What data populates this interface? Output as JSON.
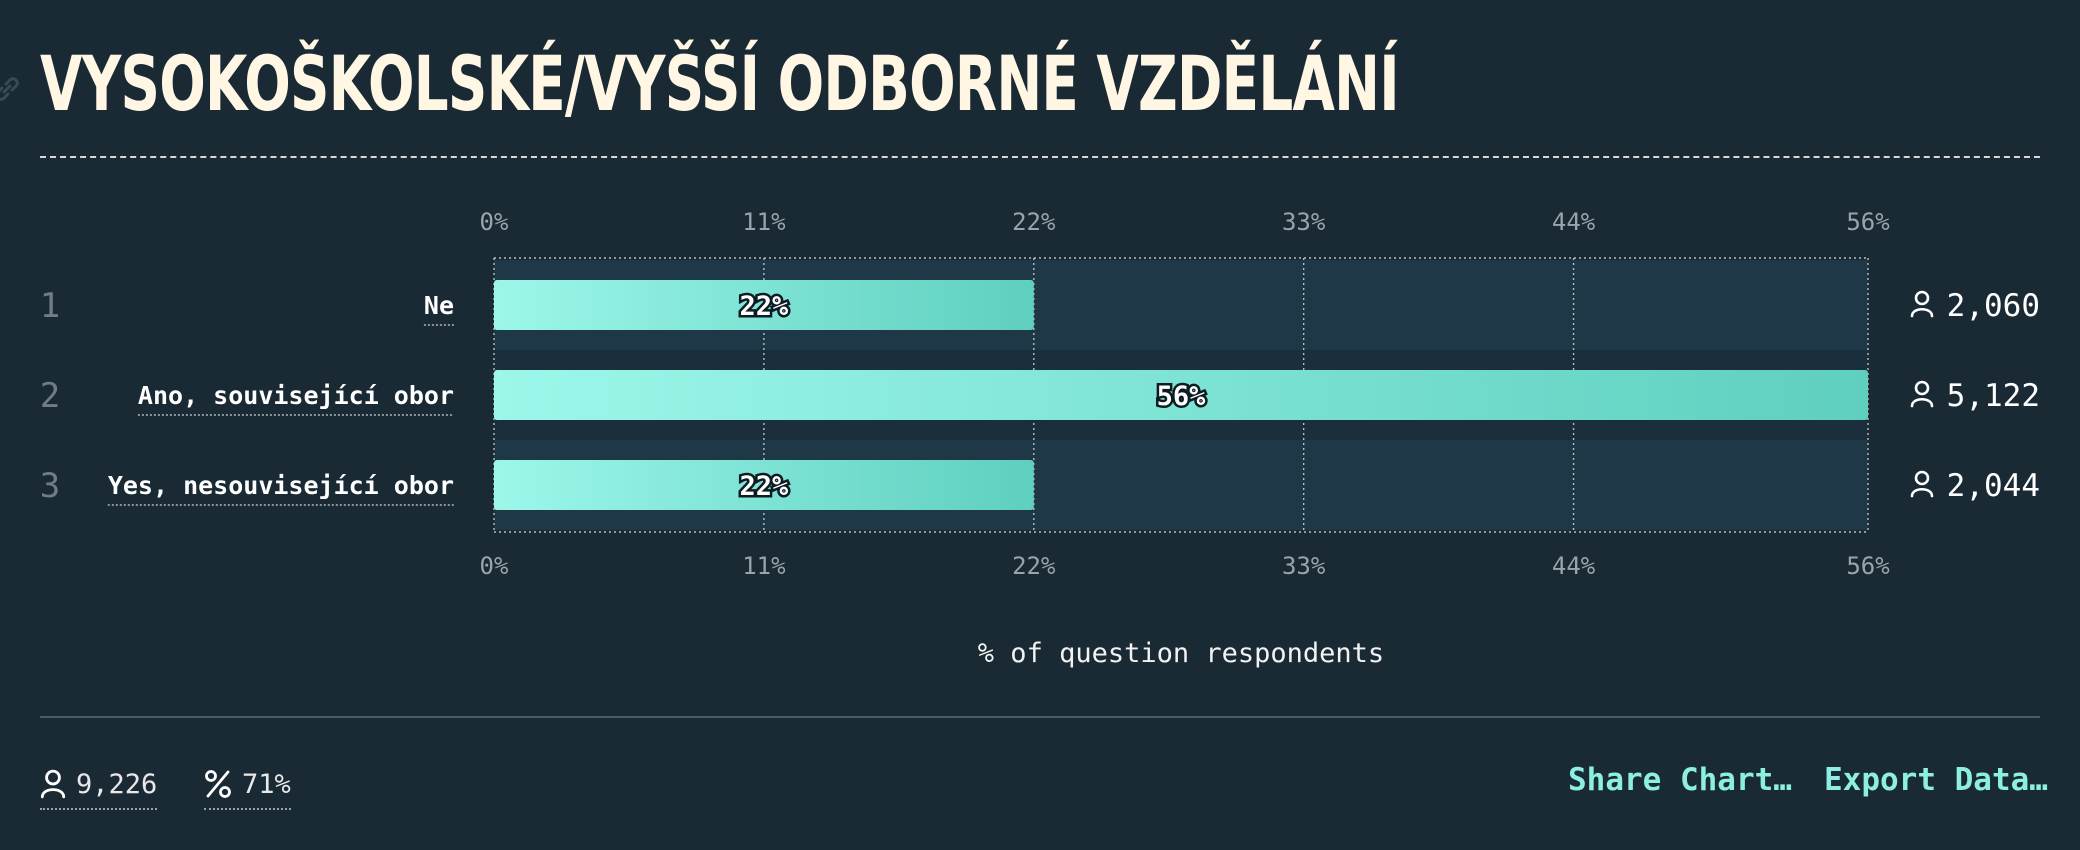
{
  "title": "VYSOKOŠKOLSKÉ/VYŠŠÍ ODBORNÉ VZDĚLÁNÍ",
  "footer": {
    "respondents": "9,226",
    "percent": "71%",
    "share_label": "Share Chart…",
    "export_label": "Export Data…"
  },
  "colors": {
    "background": "#192a35",
    "track": "#1f3847",
    "bar_start": "#9cf7e9",
    "bar_end": "#5fcfbf",
    "accent": "#8cefe1",
    "title": "#fff6e4"
  },
  "chart_data": {
    "type": "bar",
    "orientation": "horizontal",
    "categories": [
      "Ne",
      "Ano, související obor",
      "Yes, nesouvisející obor"
    ],
    "ranks": [
      "1",
      "2",
      "3"
    ],
    "values": [
      22,
      56,
      22
    ],
    "value_labels": [
      "22%",
      "56%",
      "22%"
    ],
    "counts": [
      "2,060",
      "5,122",
      "2,044"
    ],
    "count_values": [
      2060,
      5122,
      2044
    ],
    "xticks": [
      "0%",
      "11%",
      "22%",
      "33%",
      "44%",
      "56%"
    ],
    "xtick_values": [
      0,
      11,
      22,
      33,
      44,
      56
    ],
    "xlim": [
      0,
      56
    ],
    "xlabel": "% of question respondents",
    "grid": true
  }
}
